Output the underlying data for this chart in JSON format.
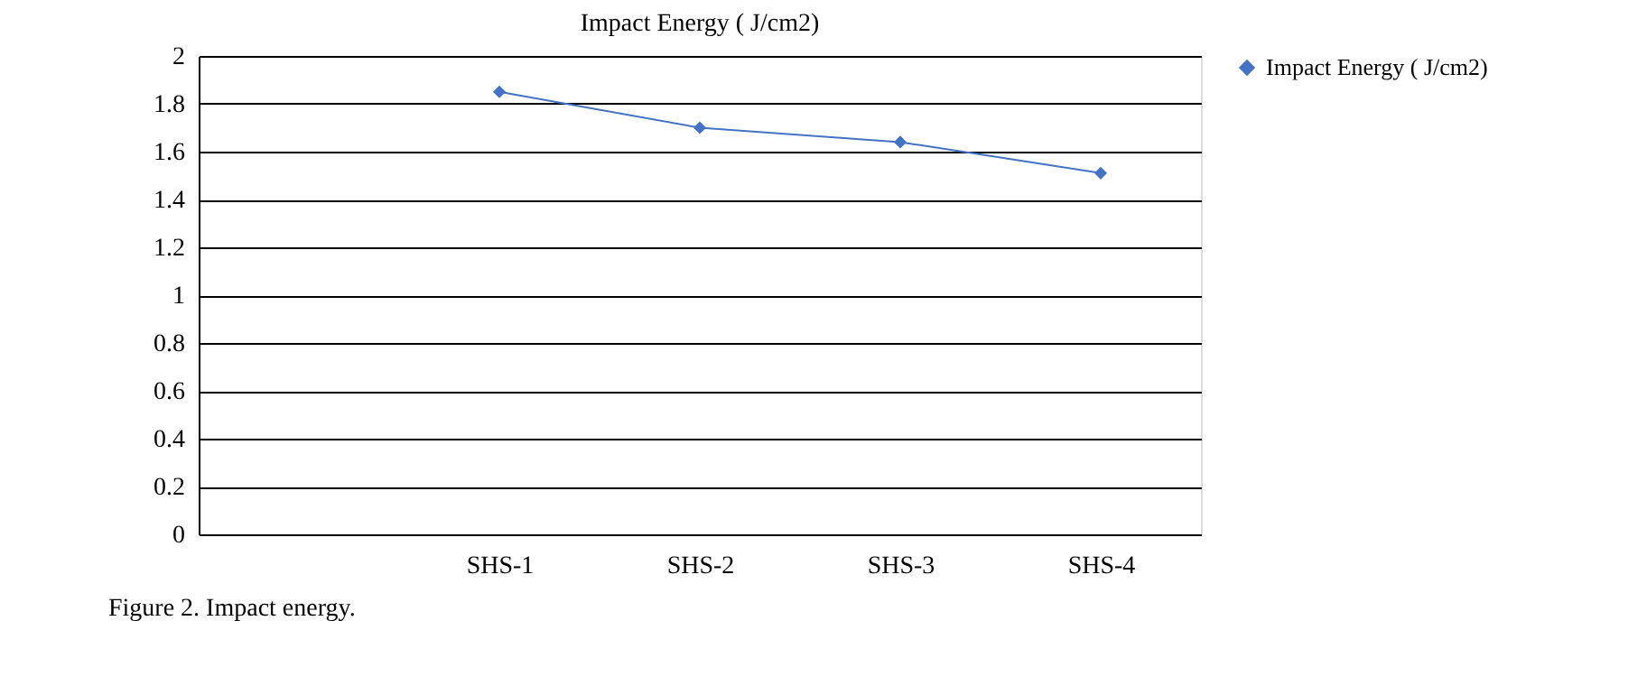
{
  "chart_data": {
    "type": "line",
    "title": "Impact Energy ( J/cm2)",
    "categories": [
      null,
      "SHS-1",
      "SHS-2",
      "SHS-3",
      "SHS-4"
    ],
    "series": [
      {
        "name": "Impact Energy ( J/cm2)",
        "color": "#4472c4",
        "values": [
          null,
          1.85,
          1.7,
          1.64,
          1.51
        ]
      }
    ],
    "ylim": [
      0,
      2
    ],
    "yticks": [
      0,
      0.2,
      0.4,
      0.6,
      0.8,
      1,
      1.2,
      1.4,
      1.6,
      1.8,
      2
    ],
    "grid": "y",
    "legend": "right",
    "marker": "diamond",
    "line_style": "solid",
    "annotations": [
      "Figure 2. Impact energy."
    ]
  }
}
